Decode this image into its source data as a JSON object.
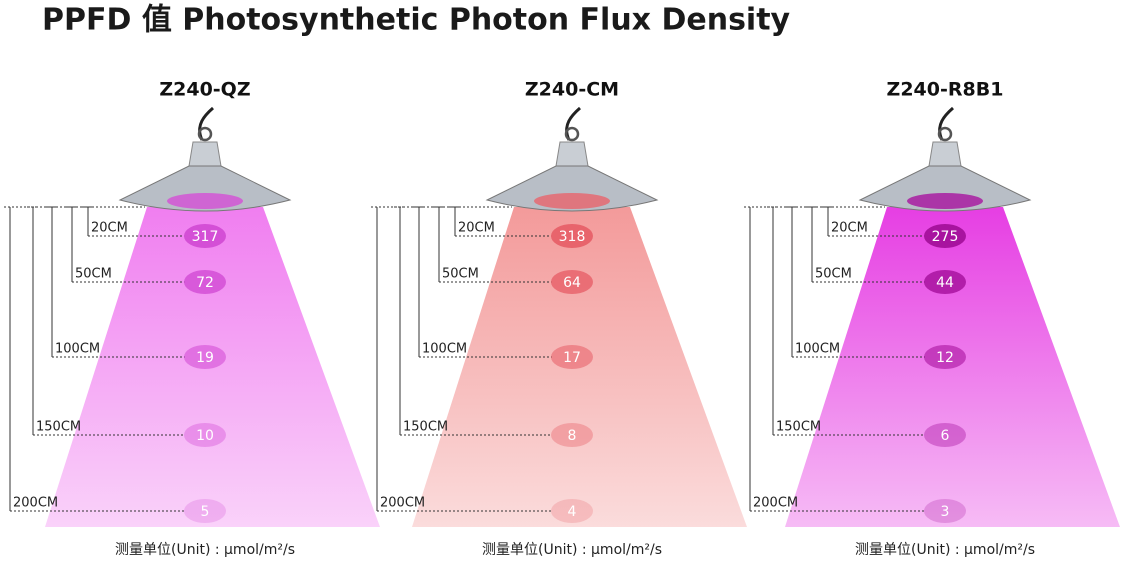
{
  "title": "PPFD 值  Photosynthetic Photon Flux Density",
  "panels": [
    {
      "model": "Z240-QZ",
      "levels": [
        {
          "distance": "20CM",
          "value": 317
        },
        {
          "distance": "50CM",
          "value": 72
        },
        {
          "distance": "100CM",
          "value": 19
        },
        {
          "distance": "150CM",
          "value": 10
        },
        {
          "distance": "200CM",
          "value": 5
        }
      ],
      "unit": "测量单位(Unit) : μmol/m²/s"
    },
    {
      "model": "Z240-CM",
      "levels": [
        {
          "distance": "20CM",
          "value": 318
        },
        {
          "distance": "50CM",
          "value": 64
        },
        {
          "distance": "100CM",
          "value": 17
        },
        {
          "distance": "150CM",
          "value": 8
        },
        {
          "distance": "200CM",
          "value": 4
        }
      ],
      "unit": "测量单位(Unit) : μmol/m²/s"
    },
    {
      "model": "Z240-R8B1",
      "levels": [
        {
          "distance": "20CM",
          "value": 275
        },
        {
          "distance": "50CM",
          "value": 44
        },
        {
          "distance": "100CM",
          "value": 12
        },
        {
          "distance": "150CM",
          "value": 6
        },
        {
          "distance": "200CM",
          "value": 3
        }
      ],
      "unit": "测量单位(Unit) : μmol/m²/s"
    }
  ]
}
